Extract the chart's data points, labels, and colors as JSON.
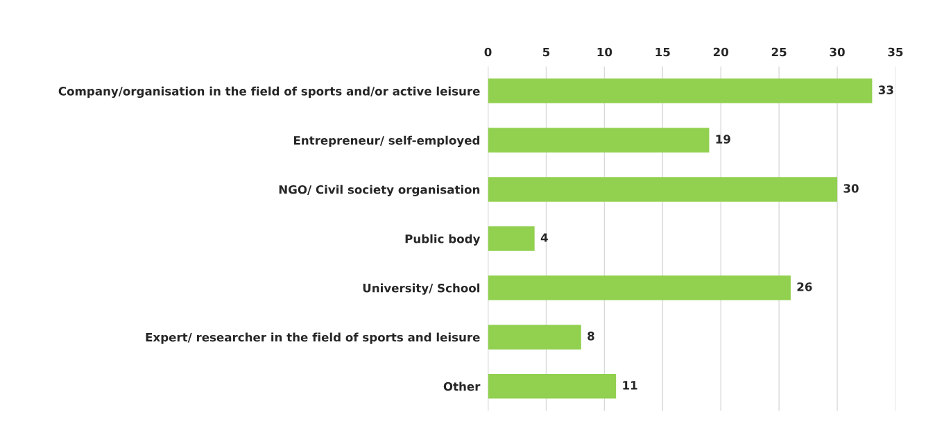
{
  "chart_data": {
    "type": "bar",
    "orientation": "horizontal",
    "categories": [
      "Company/organisation in the field of sports and/or active leisure",
      "Entrepreneur/ self-employed",
      "NGO/ Civil society organisation",
      "Public body",
      "University/ School",
      "Expert/ researcher in the field of sports and leisure",
      "Other"
    ],
    "values": [
      33,
      19,
      30,
      4,
      26,
      8,
      11
    ],
    "color": "#92d050",
    "xlim": [
      0,
      35
    ],
    "xticks": [
      0,
      5,
      10,
      15,
      20,
      25,
      30,
      35
    ],
    "grid": "x",
    "data_labels": true
  }
}
